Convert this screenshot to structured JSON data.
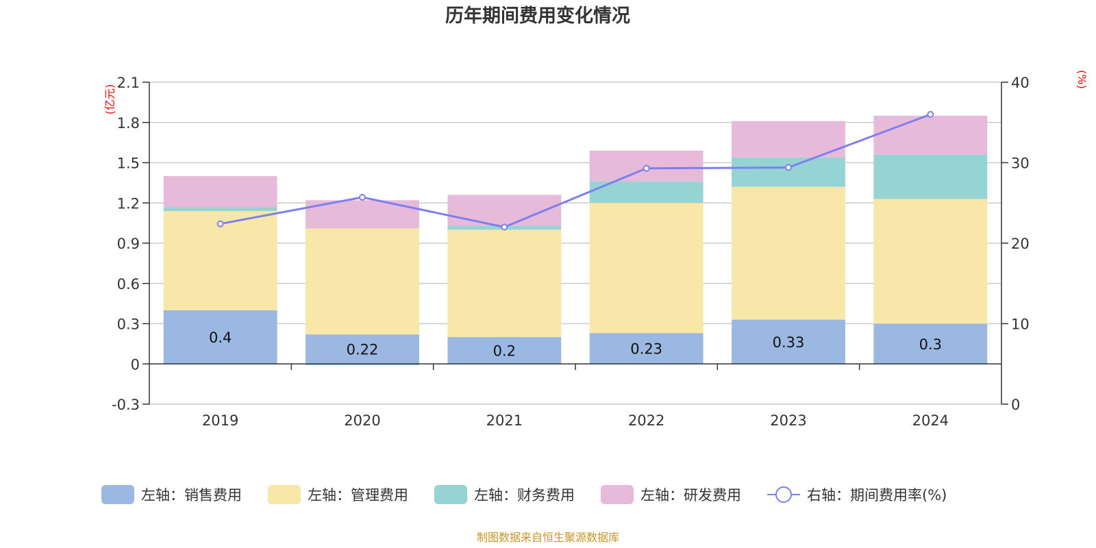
{
  "chart_data": {
    "type": "bar",
    "title": "历年期间费用变化情况",
    "categories": [
      "2019",
      "2020",
      "2021",
      "2022",
      "2023",
      "2024"
    ],
    "series": [
      {
        "name": "左轴：销售费用",
        "axis": "left",
        "color": "#9bb8e3",
        "values": [
          0.4,
          0.22,
          0.2,
          0.23,
          0.33,
          0.3
        ]
      },
      {
        "name": "左轴：管理费用",
        "axis": "left",
        "color": "#f8e7a8",
        "values": [
          0.74,
          0.79,
          0.8,
          0.97,
          0.99,
          0.93
        ]
      },
      {
        "name": "左轴：财务费用",
        "axis": "left",
        "color": "#96d4d4",
        "values": [
          0.03,
          -0.01,
          0.03,
          0.16,
          0.22,
          0.33
        ]
      },
      {
        "name": "左轴：研发费用",
        "axis": "left",
        "color": "#e8bada",
        "values": [
          0.23,
          0.21,
          0.23,
          0.23,
          0.27,
          0.29
        ]
      }
    ],
    "line_series": {
      "name": "右轴：期间费用率(%)",
      "axis": "right",
      "color": "#7b7ff0",
      "values": [
        22.4,
        25.7,
        22.0,
        29.3,
        29.4,
        36.0
      ]
    },
    "data_labels": [
      "0.4",
      "0.22",
      "0.2",
      "0.23",
      "0.33",
      "0.3"
    ],
    "left_axis": {
      "unit": "(亿元)",
      "min": -0.3,
      "max": 2.1,
      "ticks": [
        "-0.3",
        "0",
        "0.3",
        "0.6",
        "0.9",
        "1.2",
        "1.5",
        "1.8",
        "2.1"
      ]
    },
    "right_axis": {
      "unit": "(%)",
      "min": 0,
      "max": 40,
      "ticks": [
        "0",
        "10",
        "20",
        "30",
        "40"
      ]
    },
    "legend_position": "bottom",
    "source": "制图数据来自恒生聚源数据库"
  }
}
